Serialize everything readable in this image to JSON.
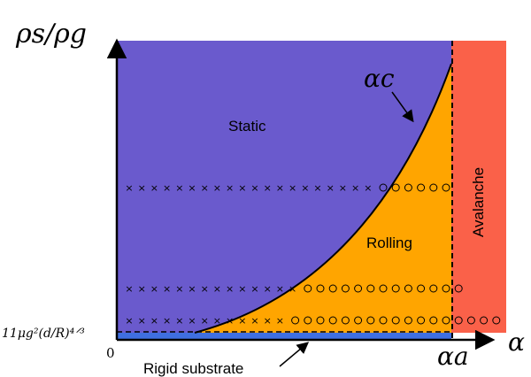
{
  "colors": {
    "static": "#6a5acd",
    "rolling": "#ffa500",
    "avalanche": "#fa6149",
    "substrate": "#3f6fe0",
    "axis": "#000000"
  },
  "labels": {
    "y_axis": "ρs/ρg",
    "x_axis": "α",
    "curve": "αc",
    "alpha_a": "αa",
    "origin": "0",
    "threshold": "11μg²(d/R)⁴ᐟ³",
    "static": "Static",
    "rolling": "Rolling",
    "avalanche": "Avalanche",
    "rigid_substrate": "Rigid substrate"
  },
  "markers": {
    "cross_symbol": "×",
    "circle_symbol": "○",
    "rows": [
      {
        "crosses": 20,
        "circles": 6
      },
      {
        "crosses": 14,
        "circles": 13
      },
      {
        "crosses": 13,
        "circles": 17
      }
    ]
  }
}
